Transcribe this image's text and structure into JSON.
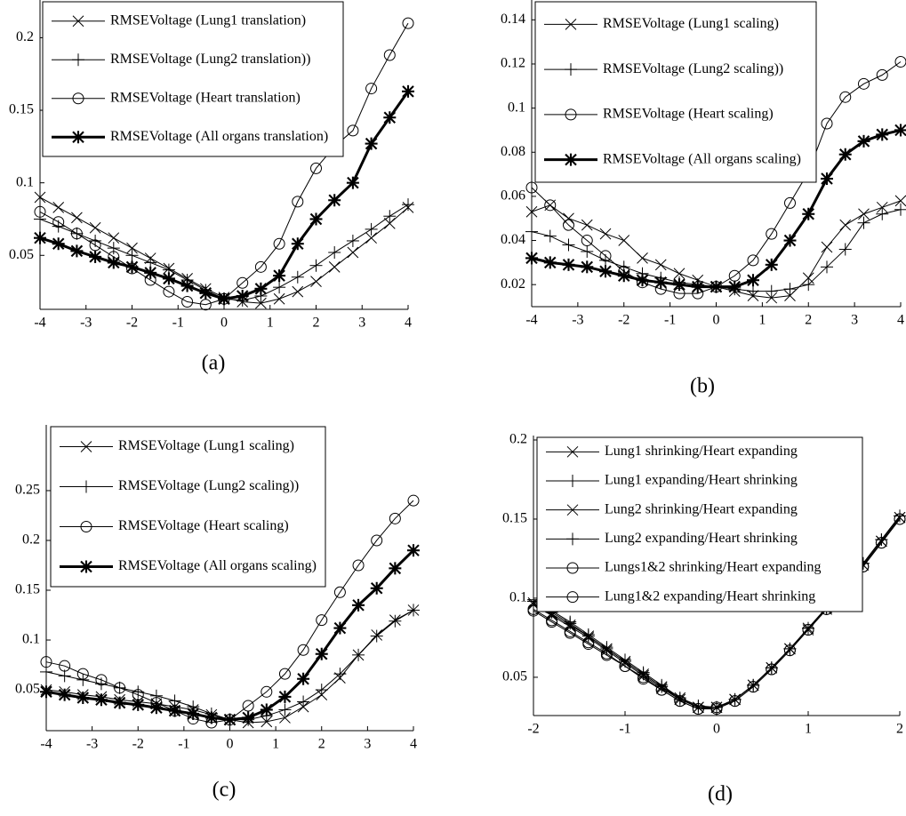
{
  "chart_data": [
    {
      "type": "line",
      "panel_label": "(a)",
      "x": [
        -4,
        -3.6,
        -3.2,
        -2.8,
        -2.4,
        -2,
        -1.6,
        -1.2,
        -0.8,
        -0.4,
        0,
        0.4,
        0.8,
        1.2,
        1.6,
        2,
        2.4,
        2.8,
        3.2,
        3.6,
        4
      ],
      "xlim": [
        -4,
        4
      ],
      "xticks": [
        -4,
        -3,
        -2,
        -1,
        0,
        1,
        2,
        3,
        4
      ],
      "ylim": [
        0.0128,
        0.226
      ],
      "yticks": [
        0.05,
        0.1,
        0.15,
        0.2
      ],
      "legend": "upper left",
      "series": [
        {
          "name": "RMSEVoltage (Lung1 translation)",
          "color": "#000000",
          "marker": "x",
          "linewidth": 1,
          "values": [
            0.09,
            0.083,
            0.076,
            0.069,
            0.062,
            0.055,
            0.048,
            0.041,
            0.034,
            0.027,
            0.021,
            0.018,
            0.017,
            0.02,
            0.025,
            0.032,
            0.042,
            0.052,
            0.062,
            0.072,
            0.083
          ]
        },
        {
          "name": "RMSEVoltage (Lung2 translation))",
          "color": "#000000",
          "marker": "+",
          "linewidth": 1,
          "values": [
            0.075,
            0.07,
            0.065,
            0.06,
            0.055,
            0.05,
            0.045,
            0.04,
            0.033,
            0.026,
            0.02,
            0.019,
            0.022,
            0.028,
            0.035,
            0.043,
            0.052,
            0.06,
            0.068,
            0.077,
            0.085
          ]
        },
        {
          "name": "RMSEVoltage (Heart translation)",
          "color": "#000000",
          "marker": "o",
          "linewidth": 1,
          "values": [
            0.08,
            0.073,
            0.065,
            0.057,
            0.049,
            0.041,
            0.033,
            0.025,
            0.018,
            0.016,
            0.02,
            0.031,
            0.042,
            0.058,
            0.087,
            0.11,
            0.125,
            0.136,
            0.165,
            0.188,
            0.21
          ]
        },
        {
          "name": "RMSEVoltage (All organs translation)",
          "color": "#000000",
          "marker": "*",
          "linewidth": 3,
          "values": [
            0.062,
            0.058,
            0.053,
            0.049,
            0.045,
            0.042,
            0.038,
            0.034,
            0.029,
            0.024,
            0.02,
            0.022,
            0.027,
            0.036,
            0.058,
            0.075,
            0.088,
            0.1,
            0.127,
            0.145,
            0.163
          ]
        }
      ]
    },
    {
      "type": "line",
      "panel_label": "(b)",
      "x": [
        -4,
        -3.6,
        -3.2,
        -2.8,
        -2.4,
        -2,
        -1.6,
        -1.2,
        -0.8,
        -0.4,
        0,
        0.4,
        0.8,
        1.2,
        1.6,
        2,
        2.4,
        2.8,
        3.2,
        3.6,
        4
      ],
      "xlim": [
        -4,
        4
      ],
      "xticks": [
        -4,
        -3,
        -2,
        -1,
        0,
        1,
        2,
        3,
        4
      ],
      "ylim": [
        0.01,
        0.149
      ],
      "yticks": [
        0.02,
        0.04,
        0.06,
        0.08,
        0.1,
        0.12,
        0.14
      ],
      "legend": "upper left",
      "series": [
        {
          "name": "RMSEVoltage (Lung1 scaling)",
          "color": "#000000",
          "marker": "x",
          "linewidth": 1,
          "values": [
            0.053,
            0.056,
            0.05,
            0.047,
            0.043,
            0.04,
            0.032,
            0.029,
            0.025,
            0.022,
            0.019,
            0.017,
            0.015,
            0.014,
            0.015,
            0.023,
            0.037,
            0.047,
            0.052,
            0.055,
            0.058
          ]
        },
        {
          "name": "RMSEVoltage (Lung2 scaling))",
          "color": "#000000",
          "marker": "+",
          "linewidth": 1,
          "values": [
            0.044,
            0.042,
            0.038,
            0.035,
            0.031,
            0.028,
            0.025,
            0.023,
            0.021,
            0.02,
            0.019,
            0.018,
            0.017,
            0.017,
            0.018,
            0.02,
            0.028,
            0.036,
            0.048,
            0.052,
            0.054
          ]
        },
        {
          "name": "RMSEVoltage (Heart scaling)",
          "color": "#000000",
          "marker": "o",
          "linewidth": 1,
          "values": [
            0.064,
            0.056,
            0.047,
            0.04,
            0.033,
            0.026,
            0.021,
            0.018,
            0.016,
            0.016,
            0.019,
            0.024,
            0.031,
            0.043,
            0.057,
            0.071,
            0.093,
            0.105,
            0.111,
            0.115,
            0.121
          ]
        },
        {
          "name": "RMSEVoltage (All organs scaling)",
          "color": "#000000",
          "marker": "*",
          "linewidth": 3,
          "values": [
            0.032,
            0.03,
            0.029,
            0.028,
            0.026,
            0.024,
            0.022,
            0.021,
            0.02,
            0.019,
            0.019,
            0.019,
            0.022,
            0.029,
            0.04,
            0.052,
            0.068,
            0.079,
            0.085,
            0.088,
            0.09
          ]
        }
      ]
    },
    {
      "type": "line",
      "panel_label": "(c)",
      "x": [
        -4,
        -3.6,
        -3.2,
        -2.8,
        -2.4,
        -2,
        -1.6,
        -1.2,
        -0.8,
        -0.4,
        0,
        0.4,
        0.8,
        1.2,
        1.6,
        2,
        2.4,
        2.8,
        3.2,
        3.6,
        4
      ],
      "xlim": [
        -4,
        4
      ],
      "xticks": [
        -4,
        -3,
        -2,
        -1,
        0,
        1,
        2,
        3,
        4
      ],
      "ylim": [
        0.009,
        0.316
      ],
      "yticks": [
        0.05,
        0.1,
        0.15,
        0.2,
        0.25
      ],
      "legend": "upper left",
      "series": [
        {
          "name": "RMSEVoltage (Lung1 scaling)",
          "color": "#000000",
          "marker": "x",
          "linewidth": 1,
          "values": [
            0.05,
            0.048,
            0.045,
            0.043,
            0.04,
            0.038,
            0.036,
            0.033,
            0.03,
            0.025,
            0.02,
            0.017,
            0.018,
            0.022,
            0.033,
            0.045,
            0.062,
            0.085,
            0.105,
            0.12,
            0.13
          ]
        },
        {
          "name": "RMSEVoltage (Lung2 scaling))",
          "color": "#000000",
          "marker": "+",
          "linewidth": 1,
          "values": [
            0.068,
            0.064,
            0.06,
            0.056,
            0.052,
            0.048,
            0.044,
            0.039,
            0.033,
            0.026,
            0.02,
            0.02,
            0.024,
            0.03,
            0.038,
            0.05,
            0.066,
            0.085,
            0.104,
            0.119,
            0.13
          ]
        },
        {
          "name": "RMSEVoltage (Heart scaling)",
          "color": "#000000",
          "marker": "o",
          "linewidth": 1,
          "values": [
            0.078,
            0.074,
            0.066,
            0.06,
            0.052,
            0.045,
            0.037,
            0.029,
            0.021,
            0.017,
            0.02,
            0.034,
            0.048,
            0.066,
            0.09,
            0.12,
            0.148,
            0.175,
            0.2,
            0.222,
            0.24
          ]
        },
        {
          "name": "RMSEVoltage (All organs scaling)",
          "color": "#000000",
          "marker": "*",
          "linewidth": 3,
          "values": [
            0.048,
            0.045,
            0.042,
            0.04,
            0.037,
            0.035,
            0.032,
            0.029,
            0.026,
            0.022,
            0.02,
            0.022,
            0.03,
            0.043,
            0.061,
            0.086,
            0.112,
            0.135,
            0.152,
            0.172,
            0.19
          ]
        }
      ]
    },
    {
      "type": "line",
      "panel_label": "(d)",
      "x": [
        -2,
        -1.8,
        -1.6,
        -1.4,
        -1.2,
        -1,
        -0.8,
        -0.6,
        -0.4,
        -0.2,
        0,
        0.2,
        0.4,
        0.6,
        0.8,
        1,
        1.2,
        1.4,
        1.6,
        1.8,
        2
      ],
      "xlim": [
        -2,
        2
      ],
      "xticks": [
        -2,
        -1,
        0,
        1,
        2
      ],
      "ylim": [
        0.0258,
        0.2028
      ],
      "yticks": [
        0.05,
        0.1,
        0.15,
        0.2
      ],
      "legend": "upper left",
      "series": [
        {
          "name": "Lung1 shrinking/Heart expanding",
          "color": "#000000",
          "marker": "x",
          "linewidth": 1,
          "values": [
            0.096,
            0.089,
            0.082,
            0.075,
            0.067,
            0.059,
            0.051,
            0.043,
            0.036,
            0.031,
            0.031,
            0.036,
            0.045,
            0.056,
            0.068,
            0.081,
            0.094,
            0.107,
            0.121,
            0.136,
            0.151
          ]
        },
        {
          "name": "Lung1 expanding/Heart shrinking",
          "color": "#000000",
          "marker": "+",
          "linewidth": 1,
          "values": [
            0.098,
            0.091,
            0.084,
            0.076,
            0.068,
            0.06,
            0.052,
            0.044,
            0.036,
            0.031,
            0.031,
            0.036,
            0.045,
            0.056,
            0.068,
            0.081,
            0.094,
            0.107,
            0.122,
            0.137,
            0.152
          ]
        },
        {
          "name": "Lung2 shrinking/Heart expanding",
          "color": "#000000",
          "marker": "x",
          "linewidth": 1,
          "values": [
            0.097,
            0.09,
            0.083,
            0.076,
            0.068,
            0.06,
            0.052,
            0.044,
            0.037,
            0.031,
            0.031,
            0.036,
            0.045,
            0.056,
            0.068,
            0.08,
            0.093,
            0.107,
            0.121,
            0.136,
            0.151
          ]
        },
        {
          "name": "Lung2 expanding/Heart shrinking",
          "color": "#000000",
          "marker": "+",
          "linewidth": 1,
          "values": [
            0.099,
            0.092,
            0.085,
            0.077,
            0.069,
            0.061,
            0.053,
            0.045,
            0.037,
            0.032,
            0.031,
            0.036,
            0.045,
            0.056,
            0.068,
            0.081,
            0.094,
            0.108,
            0.122,
            0.137,
            0.152
          ]
        },
        {
          "name": "Lungs1&2 shrinking/Heart expanding",
          "color": "#000000",
          "marker": "o",
          "linewidth": 1,
          "values": [
            0.092,
            0.085,
            0.078,
            0.071,
            0.064,
            0.057,
            0.049,
            0.042,
            0.035,
            0.03,
            0.03,
            0.035,
            0.044,
            0.055,
            0.067,
            0.08,
            0.093,
            0.106,
            0.12,
            0.135,
            0.15
          ]
        },
        {
          "name": "Lung1&2 expanding/Heart shrinking",
          "color": "#000000",
          "marker": "o",
          "linewidth": 1,
          "values": [
            0.093,
            0.086,
            0.079,
            0.072,
            0.065,
            0.057,
            0.05,
            0.042,
            0.035,
            0.03,
            0.031,
            0.035,
            0.044,
            0.055,
            0.067,
            0.08,
            0.093,
            0.106,
            0.12,
            0.135,
            0.15
          ]
        }
      ]
    }
  ]
}
